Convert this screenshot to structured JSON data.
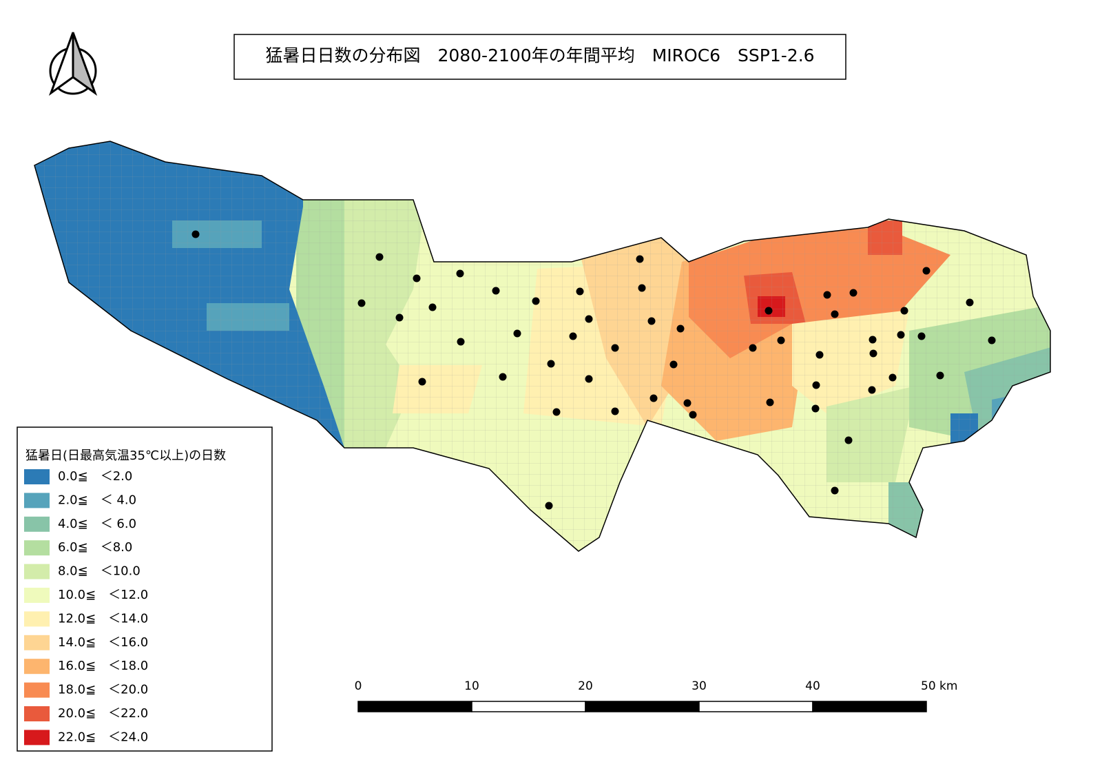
{
  "title": "猛暑日日数の分布図　2080-2100年の年間平均　MIROC6　SSP1-2.6",
  "legend": {
    "title": "猛暑日(日最高気温35℃以上)の日数",
    "items": [
      {
        "label": "0.0≦　＜2.0",
        "color": "#2c7bb6"
      },
      {
        "label": "2.0≦　＜ 4.0",
        "color": "#56a3bb"
      },
      {
        "label": "4.0≦　＜ 6.0",
        "color": "#88c4a8"
      },
      {
        "label": "6.0≦　＜8.0",
        "color": "#b4dea0"
      },
      {
        "label": "8.0≦　＜10.0",
        "color": "#d3ecaa"
      },
      {
        "label": "10.0≦　＜12.0",
        "color": "#effabc"
      },
      {
        "label": "12.0≦　＜14.0",
        "color": "#fff0b0"
      },
      {
        "label": "14.0≦　＜16.0",
        "color": "#fed593"
      },
      {
        "label": "16.0≦　＜18.0",
        "color": "#fdb56e"
      },
      {
        "label": "18.0≦　＜20.0",
        "color": "#f88b52"
      },
      {
        "label": "20.0≦　＜22.0",
        "color": "#e95a3c"
      },
      {
        "label": "22.0≦　＜24.0",
        "color": "#d7191c"
      }
    ]
  },
  "scale_bar": {
    "labels": [
      "0",
      "10",
      "20",
      "30",
      "40",
      "50 km"
    ]
  }
}
